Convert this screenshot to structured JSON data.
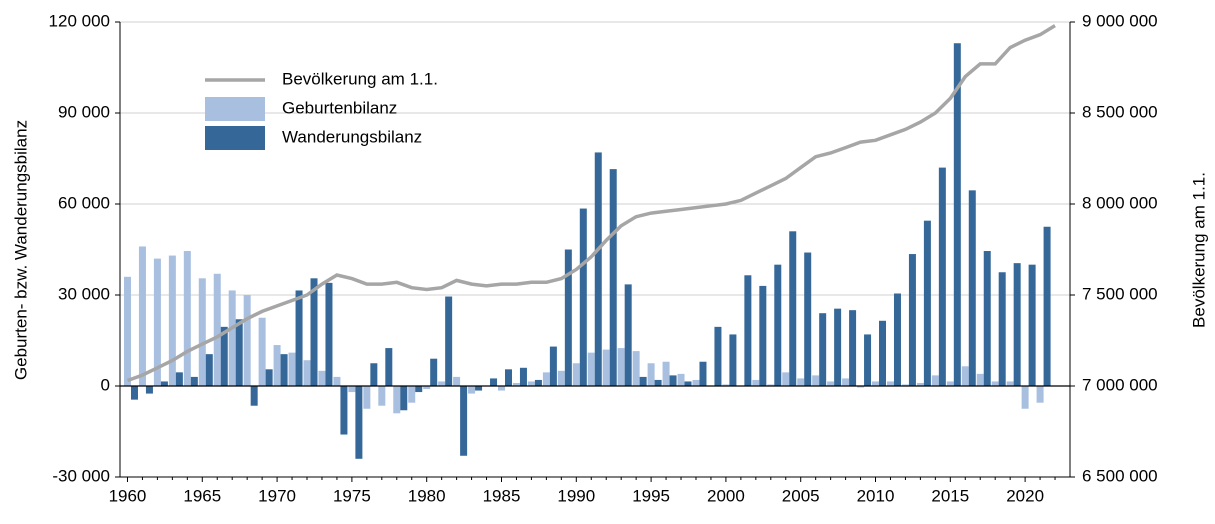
{
  "chart_data": {
    "type": "bar",
    "x": [
      1960,
      1961,
      1962,
      1963,
      1964,
      1965,
      1966,
      1967,
      1968,
      1969,
      1970,
      1971,
      1972,
      1973,
      1974,
      1975,
      1976,
      1977,
      1978,
      1979,
      1980,
      1981,
      1982,
      1983,
      1984,
      1985,
      1986,
      1987,
      1988,
      1989,
      1990,
      1991,
      1992,
      1993,
      1994,
      1995,
      1996,
      1997,
      1998,
      1999,
      2000,
      2001,
      2002,
      2003,
      2004,
      2005,
      2006,
      2007,
      2008,
      2009,
      2010,
      2011,
      2012,
      2013,
      2014,
      2015,
      2016,
      2017,
      2018,
      2019,
      2020,
      2021,
      2022
    ],
    "xlim": [
      1959.5,
      2023
    ],
    "xticks": [
      1960,
      1965,
      1970,
      1975,
      1980,
      1985,
      1990,
      1995,
      2000,
      2005,
      2010,
      2015,
      2020
    ],
    "ylim": [
      -30000,
      120000
    ],
    "yticks": [
      {
        "value": -30000,
        "label": "-30 000"
      },
      0,
      {
        "value": 30000,
        "label": "30 000"
      },
      {
        "value": 60000,
        "label": "60 000"
      },
      {
        "value": 90000,
        "label": "90 000"
      },
      {
        "value": 120000,
        "label": "120 000"
      }
    ],
    "y2lim": [
      6500000,
      9000000
    ],
    "y2ticks": [
      {
        "value": 6500000,
        "label": "6 500 000"
      },
      {
        "value": 7000000,
        "label": "7 000 000"
      },
      {
        "value": 7500000,
        "label": "7 500 000"
      },
      {
        "value": 8000000,
        "label": "8 000 000"
      },
      {
        "value": 8500000,
        "label": "8 500 000"
      },
      {
        "value": 9000000,
        "label": "9 000 000"
      }
    ],
    "ylabel": "Geburten- bzw. Wanderungsbilanz",
    "y2label": "Bevölkerung am 1.1.",
    "grid": true,
    "legend": "upper left",
    "series": [
      {
        "name": "Bevölkerung am 1.1.",
        "type": "line",
        "axis": "y2",
        "color": "#a6a6a6",
        "values": [
          7030000,
          7060000,
          7100000,
          7140000,
          7190000,
          7230000,
          7270000,
          7320000,
          7370000,
          7410000,
          7440000,
          7470000,
          7500000,
          7560000,
          7610000,
          7590000,
          7560000,
          7560000,
          7570000,
          7540000,
          7530000,
          7540000,
          7580000,
          7560000,
          7550000,
          7560000,
          7560000,
          7570000,
          7570000,
          7590000,
          7640000,
          7710000,
          7800000,
          7880000,
          7930000,
          7950000,
          7960000,
          7970000,
          7980000,
          7990000,
          8000000,
          8020000,
          8060000,
          8100000,
          8140000,
          8200000,
          8260000,
          8280000,
          8310000,
          8340000,
          8350000,
          8380000,
          8410000,
          8450000,
          8500000,
          8580000,
          8700000,
          8770000,
          8770000,
          8860000,
          8900000,
          8930000,
          8980000
        ]
      },
      {
        "name": "Geburtenbilanz",
        "type": "bar",
        "color": "#a8bfe0",
        "values": [
          36000,
          46000,
          42000,
          43000,
          44500,
          35500,
          37000,
          31500,
          30000,
          22500,
          13500,
          11000,
          8500,
          5000,
          3000,
          -2000,
          -7500,
          -6500,
          -9000,
          -5500,
          -1000,
          1500,
          3000,
          -2500,
          0,
          -1500,
          1000,
          1500,
          4500,
          5000,
          7500,
          11000,
          12000,
          12500,
          11500,
          7500,
          8000,
          4000,
          2000,
          0,
          500,
          0,
          2000,
          500,
          4500,
          2500,
          3500,
          1500,
          2500,
          -500,
          1500,
          1500,
          500,
          1000,
          3500,
          1500,
          6500,
          4000,
          1500,
          1500,
          -7500,
          -5500,
          null
        ]
      },
      {
        "name": "Wanderungsbilanz",
        "type": "bar",
        "color": "#356898",
        "values": [
          -4500,
          -2500,
          1500,
          4500,
          3000,
          10500,
          19500,
          22000,
          -6500,
          5500,
          10500,
          31500,
          35500,
          34000,
          -16000,
          -24000,
          7500,
          12500,
          -8000,
          -2000,
          9000,
          29500,
          -23000,
          -1500,
          2500,
          5500,
          6000,
          2000,
          13000,
          45000,
          58500,
          77000,
          71500,
          33500,
          3000,
          2000,
          3500,
          1500,
          8000,
          19500,
          17000,
          36500,
          33000,
          40000,
          51000,
          44000,
          24000,
          25500,
          25000,
          17000,
          21500,
          30500,
          43500,
          54500,
          72000,
          113000,
          64500,
          44500,
          37500,
          40500,
          40000,
          52500,
          null
        ]
      }
    ]
  }
}
